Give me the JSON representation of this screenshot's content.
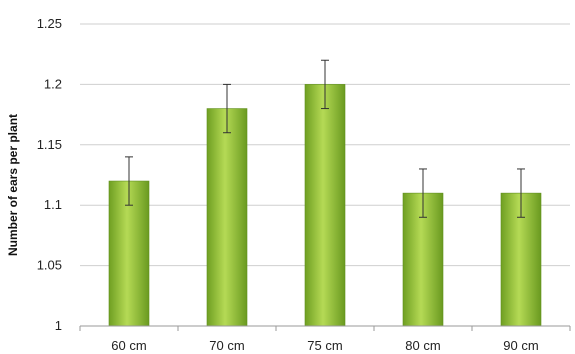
{
  "chart_data": {
    "type": "bar",
    "title": "",
    "xlabel": "",
    "ylabel": "Number of ears per plant",
    "categories": [
      "60 cm",
      "70 cm",
      "75 cm",
      "80 cm",
      "90 cm"
    ],
    "values": [
      1.12,
      1.18,
      1.2,
      1.11,
      1.11
    ],
    "error": [
      0.02,
      0.02,
      0.02,
      0.02,
      0.02
    ],
    "ylim": [
      1,
      1.25
    ],
    "yticks": [
      "1",
      "1.05",
      "1.1",
      "1.15",
      "1.2",
      "1.25"
    ],
    "yticks_values": [
      1,
      1.05,
      1.1,
      1.15,
      1.2,
      1.25
    ],
    "grid": true,
    "legend": "none",
    "colors": {
      "bar_light": "#b9dd5a",
      "bar_mid": "#8dbb2e",
      "bar_dark": "#5f8f1c",
      "grid": "#cfcfcf",
      "axis": "#9a9a9a"
    }
  }
}
